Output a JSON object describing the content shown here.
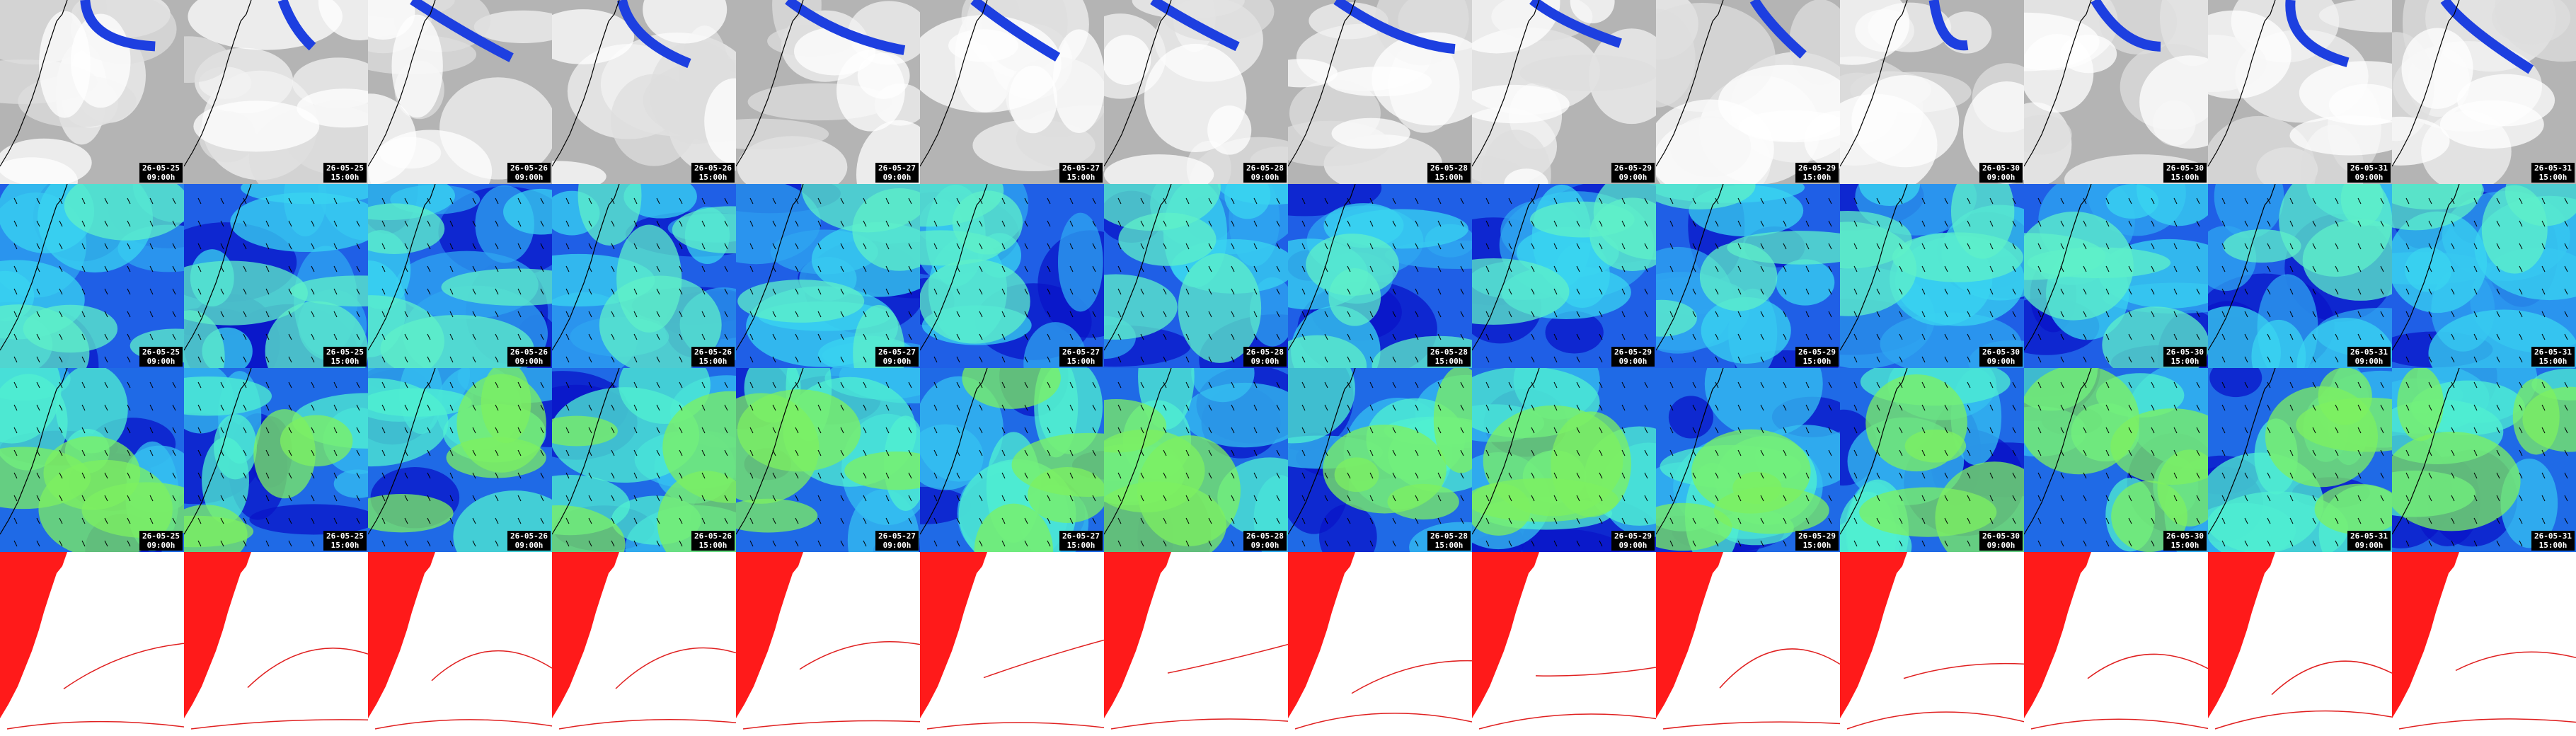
{
  "rows": [
    {
      "panels": [
        {
          "date": "26-05-25",
          "time": "09:00h"
        },
        {
          "date": "26-05-25",
          "time": "15:00h"
        },
        {
          "date": "26-05-26",
          "time": "09:00h"
        },
        {
          "date": "26-05-26",
          "time": "15:00h"
        },
        {
          "date": "26-05-27",
          "time": "09:00h"
        },
        {
          "date": "26-05-27",
          "time": "15:00h"
        },
        {
          "date": "26-05-28",
          "time": "09:00h"
        },
        {
          "date": "26-05-28",
          "time": "15:00h"
        },
        {
          "date": "26-05-29",
          "time": "09:00h"
        },
        {
          "date": "26-05-29",
          "time": "15:00h"
        },
        {
          "date": "26-05-30",
          "time": "09:00h"
        },
        {
          "date": "26-05-30",
          "time": "15:00h"
        },
        {
          "date": "26-05-31",
          "time": "09:00h"
        },
        {
          "date": "26-05-31",
          "time": "15:00h"
        }
      ]
    },
    {
      "panels": [
        {
          "date": "26-05-25",
          "time": "09:00h"
        },
        {
          "date": "26-05-25",
          "time": "15:00h"
        },
        {
          "date": "26-05-26",
          "time": "09:00h"
        },
        {
          "date": "26-05-26",
          "time": "15:00h"
        },
        {
          "date": "26-05-27",
          "time": "09:00h"
        },
        {
          "date": "26-05-27",
          "time": "15:00h"
        },
        {
          "date": "26-05-28",
          "time": "09:00h"
        },
        {
          "date": "26-05-28",
          "time": "15:00h"
        },
        {
          "date": "26-05-29",
          "time": "09:00h"
        },
        {
          "date": "26-05-29",
          "time": "15:00h"
        },
        {
          "date": "26-05-30",
          "time": "09:00h"
        },
        {
          "date": "26-05-30",
          "time": "15:00h"
        },
        {
          "date": "26-05-31",
          "time": "09:00h"
        },
        {
          "date": "26-05-31",
          "time": "15:00h"
        }
      ]
    },
    {
      "panels": [
        {
          "date": "26-05-25",
          "time": "09:00h"
        },
        {
          "date": "26-05-25",
          "time": "15:00h"
        },
        {
          "date": "26-05-26",
          "time": "09:00h"
        },
        {
          "date": "26-05-26",
          "time": "15:00h"
        },
        {
          "date": "26-05-27",
          "time": "09:00h"
        },
        {
          "date": "26-05-27",
          "time": "15:00h"
        },
        {
          "date": "26-05-28",
          "time": "09:00h"
        },
        {
          "date": "26-05-28",
          "time": "15:00h"
        },
        {
          "date": "26-05-29",
          "time": "09:00h"
        },
        {
          "date": "26-05-29",
          "time": "15:00h"
        },
        {
          "date": "26-05-30",
          "time": "09:00h"
        },
        {
          "date": "26-05-30",
          "time": "15:00h"
        },
        {
          "date": "26-05-31",
          "time": "09:00h"
        },
        {
          "date": "26-05-31",
          "time": "15:00h"
        }
      ]
    }
  ]
}
